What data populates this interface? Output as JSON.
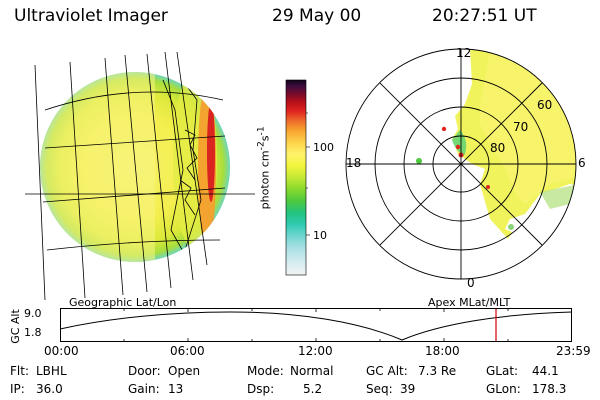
{
  "header": {
    "instrument": "Ultraviolet Imager",
    "date": "29 May 00",
    "time": "20:27:51 UT"
  },
  "colorbar": {
    "unit_html": "photon cm<sup>-2</sup>s<sup>-1</sup>",
    "ticks": [
      "100",
      "10"
    ],
    "colors": [
      "#f2f2f2",
      "#d8edf0",
      "#a8e0e4",
      "#6fd6cf",
      "#2fcbb0",
      "#22c47f",
      "#4ec93d",
      "#88d92c",
      "#c2e934",
      "#f2f43c",
      "#fff36a",
      "#fcd24a",
      "#f8a531",
      "#ee6c2a",
      "#e02520",
      "#b40f19",
      "#760b2d",
      "#3a0c3c",
      "#120518"
    ]
  },
  "panels": {
    "geo_label": "Geographic Lat/Lon",
    "apex_label": "Apex MLat/MLT"
  },
  "polar": {
    "mlt_labels": {
      "top": "12",
      "left": "18",
      "right": "6",
      "bottom": "0"
    },
    "lat_labels": [
      "60",
      "70",
      "80"
    ]
  },
  "altplot": {
    "ylabel": "GC Alt",
    "yticks": [
      "9.0",
      "1.8"
    ],
    "xticks": [
      "00:00",
      "06:00",
      "12:00",
      "18:00",
      "23:59"
    ],
    "current_time_marker": "20:27"
  },
  "status": {
    "row1": [
      {
        "k": "Flt:",
        "v": "LBHL"
      },
      {
        "k": "Door:",
        "v": "Open"
      },
      {
        "k": "Mode:",
        "v": "Normal"
      },
      {
        "k": "GC Alt:",
        "v": "7.3 Re"
      },
      {
        "k": "GLat:",
        "v": "44.1"
      }
    ],
    "row2": [
      {
        "k": "IP:",
        "v": "36.0"
      },
      {
        "k": "Gain:",
        "v": "13"
      },
      {
        "k": "Dsp:",
        "v": "5.2"
      },
      {
        "k": "Seq:",
        "v": "39"
      },
      {
        "k": "GLon:",
        "v": "178.3"
      }
    ]
  }
}
